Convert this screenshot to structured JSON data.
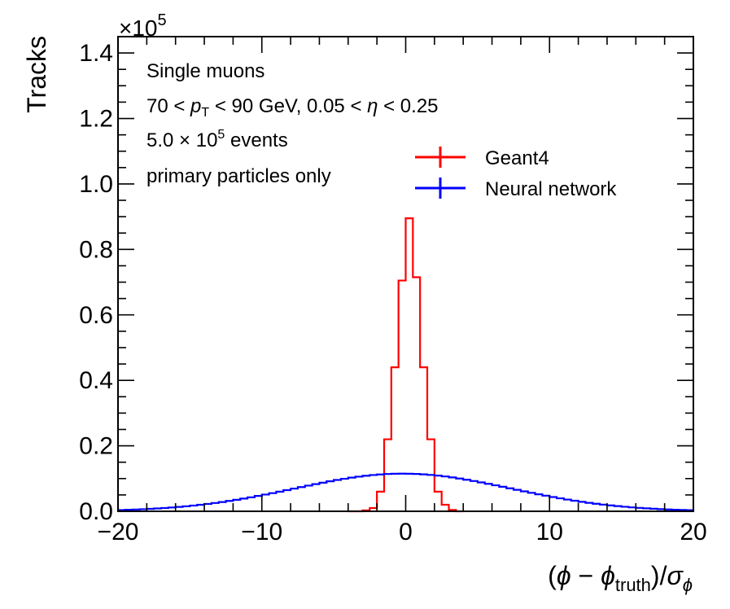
{
  "chart_data": {
    "type": "histogram",
    "xlabel": {
      "open": "(",
      "phi": "ϕ",
      "minus": " − ",
      "sub": "truth",
      "close": ")/",
      "sigma": "σ",
      "sub2": "ϕ"
    },
    "ylabel": "Tracks",
    "y_multiplier": {
      "prefix": "×10",
      "exp": "5"
    },
    "xlim": [
      -20,
      20
    ],
    "ylim": [
      0,
      1.45
    ],
    "x_ticks": [
      -20,
      -10,
      0,
      10,
      20
    ],
    "x_tick_labels": [
      "−20",
      "−10",
      "0",
      "10",
      "20"
    ],
    "y_ticks": [
      0,
      0.2,
      0.4,
      0.6,
      0.8,
      1.0,
      1.2,
      1.4
    ],
    "y_tick_labels": [
      "0.0",
      "0.2",
      "0.4",
      "0.6",
      "0.8",
      "1.0",
      "1.2",
      "1.4"
    ],
    "annotations": {
      "line1": "Single muons",
      "line2": {
        "a": "70 < ",
        "p": "p",
        "sub": "T",
        "b": " < 90 GeV, 0.05 < ",
        "eta": "η",
        "c": " < 0.25"
      },
      "line3": {
        "a": "5.0 × 10",
        "exp": "5",
        "b": " events"
      },
      "line4": "primary particles only"
    },
    "legend_position": "top-right",
    "series": [
      {
        "name": "Geant4",
        "color": "#ff0000",
        "bin_width": 0.5,
        "bins": [
          [
            -4.0,
            0.0
          ],
          [
            -3.5,
            0.0
          ],
          [
            -3.0,
            0.003
          ],
          [
            -2.5,
            0.01
          ],
          [
            -2.0,
            0.06
          ],
          [
            -1.5,
            0.22
          ],
          [
            -1.0,
            0.44
          ],
          [
            -0.5,
            0.705
          ],
          [
            0.0,
            0.895
          ],
          [
            0.5,
            0.715
          ],
          [
            1.0,
            0.44
          ],
          [
            1.5,
            0.22
          ],
          [
            2.0,
            0.06
          ],
          [
            2.5,
            0.02
          ],
          [
            3.0,
            0.004
          ],
          [
            3.5,
            0.0
          ]
        ]
      },
      {
        "name": "Neural network",
        "color": "#0000ff",
        "bin_width": 0.5,
        "gaussian": {
          "mean": -0.2,
          "sigma": 7.5,
          "amplitude": 0.115
        }
      }
    ]
  }
}
